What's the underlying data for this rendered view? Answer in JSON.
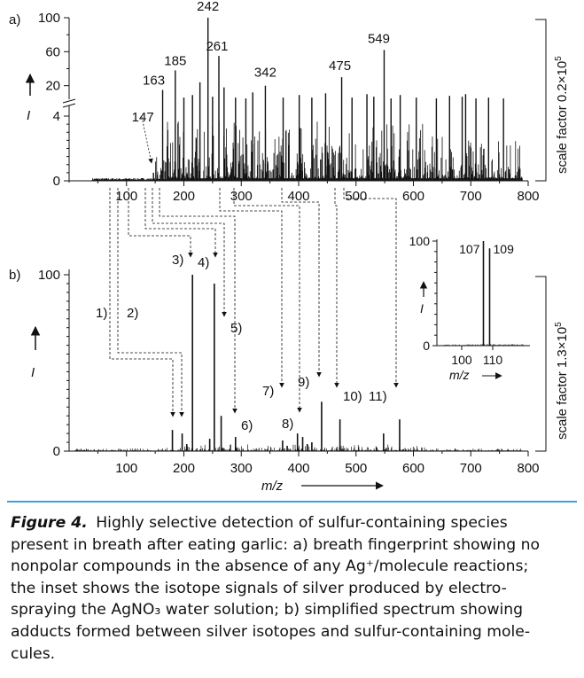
{
  "chart_data": [
    {
      "id": "a",
      "type": "bar",
      "panel_label": "a)",
      "axis_break": true,
      "xlim": [
        0,
        800
      ],
      "x_ticks": [
        100,
        200,
        300,
        400,
        500,
        600,
        700,
        800
      ],
      "y_ticks_lower": [
        0,
        4
      ],
      "y_ticks_upper": [
        20,
        60,
        100
      ],
      "ylabel": "I",
      "scale_label": "scale factor 0.2×10",
      "scale_exp": "5",
      "peak_labels": [
        {
          "text": "242",
          "x": 242,
          "y": 100
        },
        {
          "text": "261",
          "x": 261,
          "y": 55
        },
        {
          "text": "185",
          "x": 185,
          "y": 38
        },
        {
          "text": "163",
          "x": 163,
          "y": 15
        },
        {
          "text": "147",
          "x": 147,
          "y": 0.5
        },
        {
          "text": "342",
          "x": 342,
          "y": 20
        },
        {
          "text": "475",
          "x": 475,
          "y": 30
        },
        {
          "text": "549",
          "x": 549,
          "y": 62
        }
      ],
      "peaks": [
        [
          242,
          100
        ],
        [
          261,
          55
        ],
        [
          549,
          62
        ],
        [
          185,
          38
        ],
        [
          475,
          30
        ],
        [
          342,
          20
        ],
        [
          163,
          15
        ],
        [
          228,
          24
        ],
        [
          270,
          18
        ],
        [
          320,
          12
        ],
        [
          401,
          9
        ],
        [
          447,
          11
        ],
        [
          519,
          10
        ],
        [
          577,
          9
        ],
        [
          663,
          8
        ],
        [
          685,
          7
        ],
        [
          691,
          10
        ],
        [
          605,
          6
        ],
        [
          731,
          6
        ],
        [
          757,
          5
        ],
        [
          709,
          5
        ],
        [
          215,
          9
        ],
        [
          200,
          6
        ],
        [
          250,
          7
        ],
        [
          290,
          6
        ],
        [
          308,
          5
        ],
        [
          373,
          6
        ],
        [
          423,
          6
        ],
        [
          493,
          6
        ],
        [
          531,
          7
        ],
        [
          561,
          5
        ],
        [
          640,
          5
        ],
        [
          147,
          0.5
        ]
      ]
    },
    {
      "id": "b",
      "type": "bar",
      "panel_label": "b)",
      "xlim": [
        0,
        800
      ],
      "ylim": [
        0,
        100
      ],
      "x_ticks": [
        100,
        200,
        300,
        400,
        500,
        600,
        700,
        800
      ],
      "y_ticks": [
        0,
        100
      ],
      "ylabel": "I",
      "xlabel": "m/z",
      "scale_label": "scale factor 1.3×10",
      "scale_exp": "5",
      "peaks": [
        [
          215,
          100
        ],
        [
          253,
          95
        ],
        [
          180,
          12
        ],
        [
          197,
          10
        ],
        [
          265,
          20
        ],
        [
          290,
          8
        ],
        [
          372,
          6
        ],
        [
          398,
          10
        ],
        [
          407,
          8
        ],
        [
          423,
          5
        ],
        [
          440,
          28
        ],
        [
          472,
          18
        ],
        [
          548,
          10
        ],
        [
          576,
          18
        ],
        [
          245,
          7
        ],
        [
          205,
          4
        ],
        [
          415,
          4
        ],
        [
          380,
          3
        ]
      ],
      "markers": [
        {
          "num": "1)",
          "x": 180,
          "y": 12
        },
        {
          "num": "2)",
          "x": 197,
          "y": 10
        },
        {
          "num": "3)",
          "x": 215,
          "y": 100
        },
        {
          "num": "4)",
          "x": 253,
          "y": 95
        },
        {
          "num": "5)",
          "x": 253,
          "y": 60
        },
        {
          "num": "6)",
          "x": 265,
          "y": 20
        },
        {
          "num": "7)",
          "x": 372,
          "y": 28
        },
        {
          "num": "8)",
          "x": 398,
          "y": 14
        },
        {
          "num": "9)",
          "x": 407,
          "y": 32
        },
        {
          "num": "10)",
          "x": 472,
          "y": 28
        },
        {
          "num": "11)",
          "x": 576,
          "y": 28
        }
      ]
    },
    {
      "id": "inset",
      "type": "bar",
      "xlim": [
        92,
        122
      ],
      "ylim": [
        0,
        100
      ],
      "x_ticks": [
        100,
        110
      ],
      "y_ticks": [
        0,
        100
      ],
      "ylabel": "I",
      "xlabel": "m/z",
      "peak_labels": [
        {
          "text": "107",
          "x": 107,
          "y": 100
        },
        {
          "text": "109",
          "x": 109,
          "y": 100
        }
      ],
      "peaks": [
        [
          107,
          100
        ],
        [
          109,
          93
        ]
      ]
    }
  ],
  "caption": {
    "label": "Figure 4.",
    "lines": [
      "Highly selective detection of sulfur-containing species",
      "present in breath after eating garlic: a) breath fingerprint showing no",
      "nonpolar compounds in the absence of any Ag⁺/molecule reactions;",
      "the inset shows the isotope signals of silver produced by electro-",
      "spraying the AgNO₃ water solution; b) simplified spectrum showing",
      "adducts formed between silver isotopes and sulfur-containing mole-",
      "cules."
    ]
  }
}
